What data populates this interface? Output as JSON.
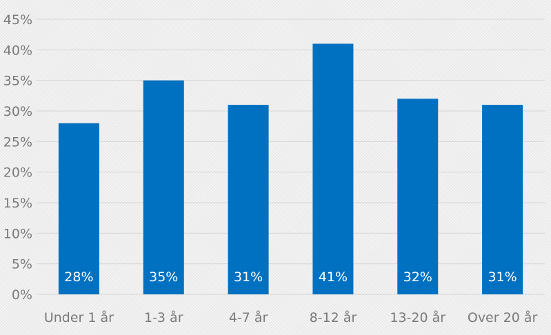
{
  "chart_data": {
    "type": "bar",
    "title": "",
    "categories": [
      "Under 1 år",
      "1-3 år",
      "4-7 år",
      "8-12 år",
      "13-20 år",
      "Over 20 år"
    ],
    "values": [
      28,
      35,
      31,
      41,
      32,
      31
    ],
    "data_labels": [
      "28%",
      "35%",
      "31%",
      "41%",
      "32%",
      "31%"
    ],
    "ylim": [
      0,
      45
    ],
    "yticks": [
      0,
      5,
      10,
      15,
      20,
      25,
      30,
      35,
      40,
      45
    ],
    "ytick_labels": [
      "0%",
      "5%",
      "10%",
      "15%",
      "20%",
      "25%",
      "30%",
      "35%",
      "40%",
      "45%"
    ],
    "xlabel": "",
    "ylabel": "",
    "grid": true,
    "legend": "none",
    "bar_color": "#0070c0",
    "grid_color": "#d9d9d9"
  }
}
